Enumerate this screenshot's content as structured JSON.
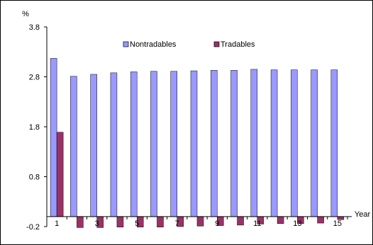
{
  "chart_data": {
    "type": "bar",
    "ylabel": "%",
    "xlabel": "Year",
    "ylim": [
      -0.2,
      3.8
    ],
    "yticks": [
      "-0.2",
      "0.8",
      "1.8",
      "2.8",
      "3.8"
    ],
    "ytick_values": [
      -0.2,
      0.8,
      1.8,
      2.8,
      3.8
    ],
    "categories": [
      "1",
      "2",
      "3",
      "4",
      "5",
      "6",
      "7",
      "8",
      "9",
      "10",
      "11",
      "12",
      "13",
      "14",
      "15"
    ],
    "xtick_labels": [
      "1",
      "",
      "3",
      "",
      "5",
      "",
      "7",
      "",
      "9",
      "",
      "11",
      "",
      "13",
      "",
      "15"
    ],
    "legend_position": "top",
    "series": [
      {
        "name": "Nontradables",
        "color": "#9999ff",
        "values": [
          3.17,
          2.81,
          2.85,
          2.88,
          2.9,
          2.91,
          2.91,
          2.92,
          2.93,
          2.93,
          2.95,
          2.94,
          2.94,
          2.94,
          2.94
        ]
      },
      {
        "name": "Tradables",
        "color": "#993366",
        "values": [
          1.69,
          -0.22,
          -0.22,
          -0.21,
          -0.21,
          -0.21,
          -0.2,
          -0.19,
          -0.18,
          -0.17,
          -0.15,
          -0.14,
          -0.14,
          -0.13,
          -0.06
        ]
      }
    ]
  }
}
